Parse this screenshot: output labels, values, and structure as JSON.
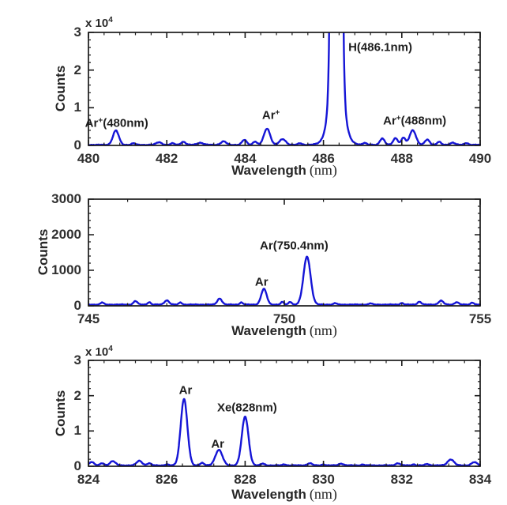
{
  "figure": {
    "labels": {
      "ylabel": "Counts",
      "xlabel_word": "Wavelength",
      "xlabel_unit": "(nm)",
      "exponent_base": "x 10",
      "exponent_power": "4"
    },
    "line_color": "#1515d6",
    "axis_color": "#1a1a1a"
  },
  "chart_data": [
    {
      "type": "line",
      "title": "",
      "xlabel": "Wavelength (nm)",
      "ylabel": "Counts",
      "xlim": [
        480,
        490
      ],
      "ylim": [
        0,
        30000
      ],
      "y_exponent_label": "x 10^4",
      "x_ticks": {
        "major": [
          480,
          482,
          484,
          486,
          488,
          490
        ],
        "labels": [
          "480",
          "482",
          "484",
          "486",
          "488",
          "490"
        ],
        "minor_step": 0.4
      },
      "y_ticks": {
        "major": [
          0,
          10000,
          20000,
          30000
        ],
        "labels": [
          "0",
          "1",
          "2",
          "3"
        ],
        "minor_step": 2000
      },
      "baseline_counts": 150,
      "profile_components": [
        [
          480.7,
          0.075,
          3800
        ],
        [
          481.15,
          0.05,
          400
        ],
        [
          481.8,
          0.07,
          700
        ],
        [
          482.15,
          0.05,
          400
        ],
        [
          482.42,
          0.06,
          800
        ],
        [
          482.85,
          0.08,
          550
        ],
        [
          483.45,
          0.07,
          900
        ],
        [
          483.98,
          0.06,
          1300
        ],
        [
          484.25,
          0.05,
          900
        ],
        [
          484.56,
          0.08,
          4300
        ],
        [
          484.96,
          0.08,
          1500
        ],
        [
          485.4,
          0.05,
          400
        ],
        [
          486.33,
          0.07,
          600000
        ],
        [
          486.33,
          0.15,
          22000
        ],
        [
          486.33,
          0.24,
          2200
        ],
        [
          487.05,
          0.05,
          500
        ],
        [
          487.5,
          0.06,
          1700
        ],
        [
          487.84,
          0.06,
          1800
        ],
        [
          488.04,
          0.05,
          1900
        ],
        [
          488.28,
          0.08,
          3900
        ],
        [
          488.65,
          0.06,
          1400
        ],
        [
          488.95,
          0.05,
          800
        ],
        [
          489.3,
          0.06,
          600
        ],
        [
          489.65,
          0.05,
          500
        ]
      ],
      "annotations": [
        {
          "text": "Ar+(480nm)",
          "parts": {
            "pre": "Ar",
            "sup": "+",
            "post": "(480nm)"
          },
          "peak_nm": 480.7,
          "peak_counts": 3800,
          "clipped": false,
          "x": 480.72,
          "y": 5800
        },
        {
          "text": "Ar+",
          "parts": {
            "pre": "Ar",
            "sup": "+",
            "post": ""
          },
          "peak_nm": 484.56,
          "peak_counts": 4300,
          "clipped": false,
          "x": 484.66,
          "y": 8000
        },
        {
          "text": "H(486.1nm)",
          "parts": {
            "pre": "H(486.1nm)",
            "sup": "",
            "post": ""
          },
          "peak_nm": 486.33,
          "peak_counts": 30000,
          "clipped": true,
          "x": 487.45,
          "y": 26000
        },
        {
          "text": "Ar+(488nm)",
          "parts": {
            "pre": "Ar",
            "sup": "+",
            "post": "(488nm)"
          },
          "peak_nm": 488.28,
          "peak_counts": 3900,
          "clipped": false,
          "x": 488.33,
          "y": 6400
        }
      ]
    },
    {
      "type": "line",
      "title": "",
      "xlabel": "Wavelength (nm)",
      "ylabel": "Counts",
      "xlim": [
        745,
        755
      ],
      "ylim": [
        0,
        3000
      ],
      "y_exponent_label": null,
      "x_ticks": {
        "major": [
          745,
          750,
          755
        ],
        "labels": [
          "745",
          "750",
          "755"
        ],
        "minor_step": 1.0
      },
      "y_ticks": {
        "major": [
          0,
          1000,
          2000,
          3000
        ],
        "labels": [
          "0",
          "1000",
          "2000",
          "3000"
        ],
        "minor_step": 200
      },
      "baseline_counts": 35,
      "profile_components": [
        [
          745.35,
          0.04,
          60
        ],
        [
          746.2,
          0.05,
          100
        ],
        [
          746.55,
          0.04,
          70
        ],
        [
          747.0,
          0.06,
          120
        ],
        [
          747.35,
          0.04,
          60
        ],
        [
          748.35,
          0.06,
          170
        ],
        [
          748.9,
          0.04,
          60
        ],
        [
          749.48,
          0.07,
          440
        ],
        [
          749.95,
          0.04,
          70
        ],
        [
          750.15,
          0.04,
          80
        ],
        [
          750.58,
          0.09,
          1350
        ],
        [
          751.3,
          0.04,
          40
        ],
        [
          752.2,
          0.04,
          35
        ],
        [
          753.0,
          0.04,
          45
        ],
        [
          753.45,
          0.05,
          80
        ],
        [
          754.0,
          0.06,
          110
        ],
        [
          754.4,
          0.05,
          70
        ],
        [
          754.8,
          0.04,
          60
        ]
      ],
      "annotations": [
        {
          "text": "Ar",
          "parts": {
            "pre": "Ar",
            "sup": "",
            "post": ""
          },
          "peak_nm": 749.48,
          "peak_counts": 440,
          "clipped": false,
          "x": 749.42,
          "y": 660
        },
        {
          "text": "Ar(750.4nm)",
          "parts": {
            "pre": "Ar(750.4nm)",
            "sup": "",
            "post": ""
          },
          "peak_nm": 750.58,
          "peak_counts": 1350,
          "clipped": false,
          "x": 750.25,
          "y": 1700
        }
      ]
    },
    {
      "type": "line",
      "title": "",
      "xlabel": "Wavelength (nm)",
      "ylabel": "Counts",
      "xlim": [
        824,
        834
      ],
      "ylim": [
        0,
        30000
      ],
      "y_exponent_label": "x 10^4",
      "x_ticks": {
        "major": [
          824,
          826,
          828,
          830,
          832,
          834
        ],
        "labels": [
          "824",
          "826",
          "828",
          "830",
          "832",
          "834"
        ],
        "minor_step": 0.4
      },
      "y_ticks": {
        "major": [
          0,
          10000,
          20000,
          30000
        ],
        "labels": [
          "0",
          "1",
          "2",
          "3"
        ],
        "minor_step": 2000
      },
      "baseline_counts": 250,
      "profile_components": [
        [
          824.08,
          0.06,
          1000
        ],
        [
          824.35,
          0.05,
          600
        ],
        [
          824.62,
          0.07,
          1200
        ],
        [
          825.3,
          0.07,
          1300
        ],
        [
          825.55,
          0.05,
          600
        ],
        [
          826.0,
          0.04,
          300
        ],
        [
          826.44,
          0.085,
          18800
        ],
        [
          826.9,
          0.05,
          700
        ],
        [
          827.33,
          0.09,
          4400
        ],
        [
          828.0,
          0.085,
          13800
        ],
        [
          828.45,
          0.05,
          500
        ],
        [
          829.0,
          0.04,
          300
        ],
        [
          829.65,
          0.06,
          600
        ],
        [
          830.0,
          0.04,
          300
        ],
        [
          830.45,
          0.06,
          500
        ],
        [
          831.0,
          0.04,
          250
        ],
        [
          831.9,
          0.06,
          600
        ],
        [
          832.3,
          0.04,
          300
        ],
        [
          832.65,
          0.05,
          400
        ],
        [
          833.25,
          0.08,
          1700
        ],
        [
          833.85,
          0.07,
          900
        ]
      ],
      "annotations": [
        {
          "text": "Ar",
          "parts": {
            "pre": "Ar",
            "sup": "",
            "post": ""
          },
          "peak_nm": 826.44,
          "peak_counts": 18800,
          "clipped": false,
          "x": 826.48,
          "y": 21400
        },
        {
          "text": "Ar",
          "parts": {
            "pre": "Ar",
            "sup": "",
            "post": ""
          },
          "peak_nm": 827.33,
          "peak_counts": 4400,
          "clipped": false,
          "x": 827.3,
          "y": 6200
        },
        {
          "text": "Xe(828nm)",
          "parts": {
            "pre": "Xe(828nm)",
            "sup": "",
            "post": ""
          },
          "peak_nm": 828.0,
          "peak_counts": 13800,
          "clipped": false,
          "x": 828.05,
          "y": 16500
        }
      ]
    }
  ]
}
